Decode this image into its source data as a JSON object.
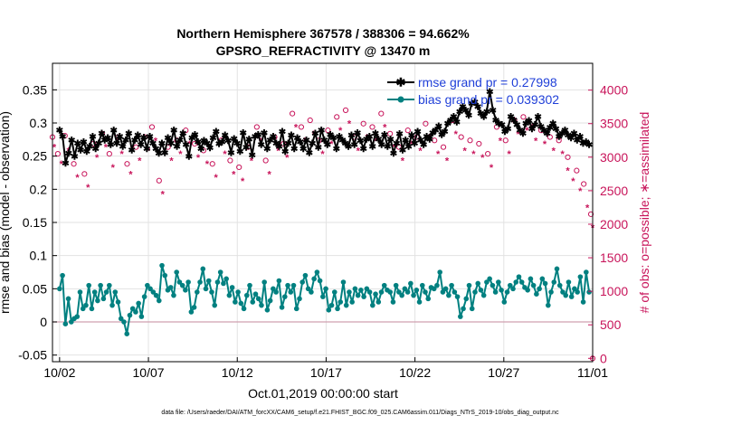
{
  "chart_data": {
    "type": "line",
    "title": "Northern Hemisphere 367578 / 388306 = 94.662%",
    "subtitle": "GPSRO_REFRACTIVITY @ 13470 m",
    "xlabel": "Oct.01,2019 00:00:00 start",
    "ylabel": "rmse and bias (model - observation)",
    "ylabel_right": "# of obs: o=possible; ∗=assimilated",
    "x_range": [
      0.6,
      31.0
    ],
    "ylim": [
      -0.06,
      0.39
    ],
    "ylim_right": [
      -50,
      4400
    ],
    "x_ticks": [
      1,
      6,
      11,
      16,
      21,
      26,
      31
    ],
    "x_tick_labels": [
      "10/02",
      "10/07",
      "10/12",
      "10/17",
      "10/22",
      "10/27",
      "11/01"
    ],
    "y_ticks": [
      -0.05,
      0,
      0.05,
      0.1,
      0.15,
      0.2,
      0.25,
      0.3,
      0.35
    ],
    "y_tick_labels": [
      "-0.05",
      "0",
      "0.05",
      "0.1",
      "0.15",
      "0.2",
      "0.25",
      "0.3",
      "0.35"
    ],
    "y_right_ticks": [
      0,
      500,
      1000,
      1500,
      2000,
      2500,
      3000,
      3500,
      4000
    ],
    "y_right_tick_labels": [
      "0",
      "500",
      "1000",
      "1500",
      "2000",
      "2500",
      "3000",
      "3500",
      "4000"
    ],
    "grid": true,
    "legend_position": "top-right",
    "series": [
      {
        "name": "rmse grand pr = 0.27998",
        "color": "#000000",
        "axis": "left",
        "marker": "star",
        "values": [
          0.29,
          0.28,
          0.24,
          0.255,
          0.275,
          0.25,
          0.27,
          0.26,
          0.272,
          0.258,
          0.265,
          0.28,
          0.262,
          0.27,
          0.285,
          0.275,
          0.278,
          0.268,
          0.29,
          0.27,
          0.28,
          0.265,
          0.275,
          0.285,
          0.26,
          0.275,
          0.282,
          0.268,
          0.279,
          0.262,
          0.28,
          0.27,
          0.262,
          0.255,
          0.27,
          0.256,
          0.278,
          0.27,
          0.29,
          0.265,
          0.275,
          0.285,
          0.268,
          0.25,
          0.278,
          0.283,
          0.272,
          0.262,
          0.274,
          0.27,
          0.263,
          0.278,
          0.288,
          0.269,
          0.272,
          0.282,
          0.274,
          0.256,
          0.277,
          0.27,
          0.258,
          0.286,
          0.264,
          0.276,
          0.252,
          0.28,
          0.283,
          0.268,
          0.286,
          0.262,
          0.275,
          0.28,
          0.27,
          0.265,
          0.288,
          0.258,
          0.27,
          0.282,
          0.262,
          0.278,
          0.272,
          0.262,
          0.275,
          0.256,
          0.27,
          0.285,
          0.264,
          0.29,
          0.275,
          0.268,
          0.283,
          0.278,
          0.262,
          0.28,
          0.275,
          0.27,
          0.265,
          0.282,
          0.268,
          0.286,
          0.274,
          0.262,
          0.276,
          0.28,
          0.265,
          0.285,
          0.276,
          0.268,
          0.283,
          0.265,
          0.276,
          0.255,
          0.27,
          0.284,
          0.26,
          0.275,
          0.265,
          0.282,
          0.27,
          0.288,
          0.275,
          0.268,
          0.28,
          0.276,
          0.286,
          0.29,
          0.296,
          0.283,
          0.288,
          0.3,
          0.305,
          0.31,
          0.302,
          0.318,
          0.325,
          0.32,
          0.312,
          0.33,
          0.332,
          0.325,
          0.315,
          0.31,
          0.318,
          0.348,
          0.32,
          0.305,
          0.3,
          0.298,
          0.288,
          0.292,
          0.31,
          0.305,
          0.298,
          0.29,
          0.285,
          0.3,
          0.304,
          0.292,
          0.298,
          0.31,
          0.295,
          0.29,
          0.285,
          0.294,
          0.3,
          0.292,
          0.28,
          0.285,
          0.29,
          0.282,
          0.278,
          0.285,
          0.275,
          0.28,
          0.27,
          0.272,
          0.268
        ]
      },
      {
        "name": "bias grand pr = 0.039302",
        "color": "#008080",
        "axis": "left",
        "marker": "circle",
        "values": [
          0.05,
          0.07,
          -0.003,
          0.035,
          0,
          0.005,
          0.008,
          0.045,
          0.02,
          0.025,
          0.055,
          0.02,
          0.045,
          0.032,
          0.055,
          0.035,
          0.045,
          0.055,
          0.025,
          0.045,
          0.03,
          0.005,
          0,
          -0.018,
          0.01,
          0.02,
          0.015,
          0.028,
          0.008,
          0.038,
          0.055,
          0.05,
          0.045,
          0.04,
          0.032,
          0.085,
          0.07,
          0.048,
          0.052,
          0.04,
          0.075,
          0.06,
          0.055,
          0.048,
          0.06,
          0.015,
          0.022,
          0.045,
          0.06,
          0.08,
          0.05,
          0.062,
          0.045,
          0.025,
          0.06,
          0.075,
          0.058,
          0.065,
          0.04,
          0.052,
          0.03,
          0.045,
          0.028,
          0.02,
          0.04,
          0.055,
          0.03,
          0.042,
          0.035,
          0.025,
          0.06,
          0.018,
          0.032,
          0.05,
          0.045,
          0.062,
          0.022,
          0.038,
          0.055,
          0.045,
          0.055,
          0.02,
          0.035,
          0.06,
          0.07,
          0.05,
          0.045,
          0.065,
          0.075,
          0.062,
          0.038,
          0.05,
          0.018,
          0.025,
          0.045,
          0.02,
          0.03,
          0.06,
          0.025,
          0.045,
          0.03,
          0.05,
          0.04,
          0.048,
          0.038,
          0.05,
          0.045,
          0.025,
          0.042,
          0.03,
          0.045,
          0.055,
          0.048,
          0.045,
          0.03,
          0.055,
          0.045,
          0.04,
          0.05,
          0.045,
          0.058,
          0.04,
          0.048,
          0.03,
          0.055,
          0.045,
          0.035,
          0.052,
          0.05,
          0.055,
          0.075,
          0.045,
          0.05,
          0.04,
          0.055,
          0.045,
          0.038,
          0.008,
          0.02,
          0.035,
          0.055,
          0.02,
          0.045,
          0.058,
          0.048,
          0.04,
          0.06,
          0.065,
          0.055,
          0.045,
          0.06,
          0.048,
          0.03,
          0.045,
          0.055,
          0.05,
          0.06,
          0.068,
          0.06,
          0.052,
          0.048,
          0.065,
          0.055,
          0.042,
          0.05,
          0.065,
          0.058,
          0.025,
          0.045,
          0.06,
          0.08,
          0.055,
          0.045,
          0.04,
          0.06,
          0.038,
          0.05,
          0.045,
          0.068,
          0.03,
          0.075,
          0.045
        ]
      },
      {
        "name": "# obs possible",
        "color": "#c8145a",
        "axis": "right",
        "marker": "o",
        "x": [
          0.6,
          0.9,
          1.3,
          1.8,
          2.4,
          2.9,
          3.4,
          3.8,
          4.3,
          4.8,
          5.3,
          5.8,
          6.2,
          6.6,
          7.1,
          7.6,
          8.1,
          8.6,
          9.1,
          9.6,
          10.1,
          10.6,
          11.1,
          11.6,
          12.1,
          12.6,
          13.1,
          13.6,
          14.1,
          14.6,
          15.1,
          15.6,
          16.1,
          16.6,
          17.1,
          17.6,
          18.1,
          18.6,
          19.1,
          19.6,
          20.1,
          20.6,
          21.1,
          21.6,
          22.1,
          22.6,
          23.1,
          23.6,
          24.1,
          24.6,
          25.1,
          25.6,
          26.1,
          26.6,
          27.1,
          27.6,
          28.1,
          28.6,
          29.1,
          29.6,
          30.1,
          30.5,
          30.9
        ],
        "values": [
          3300,
          3050,
          3320,
          2900,
          2750,
          3200,
          3350,
          3050,
          3300,
          2900,
          3150,
          3300,
          3450,
          2650,
          3150,
          3250,
          3400,
          3200,
          3100,
          2900,
          3250,
          2950,
          2850,
          3150,
          3450,
          2950,
          3300,
          3200,
          3650,
          3450,
          3550,
          3250,
          3400,
          3600,
          3700,
          3300,
          3500,
          3450,
          3650,
          3350,
          3150,
          3400,
          3300,
          3500,
          3250,
          3150,
          3550,
          3300,
          3250,
          3200,
          3050,
          3450,
          3250,
          3550,
          3600,
          3450,
          3400,
          3300,
          3250,
          3000,
          2800,
          2600,
          2150
        ]
      },
      {
        "name": "# obs assimilated",
        "color": "#c8145a",
        "axis": "right",
        "marker": "star",
        "x": [
          0.7,
          1.1,
          1.5,
          2.0,
          2.6,
          3.1,
          3.6,
          4.0,
          4.5,
          5.0,
          5.5,
          6.0,
          6.4,
          6.8,
          7.3,
          7.8,
          8.3,
          8.8,
          9.3,
          9.8,
          10.3,
          10.8,
          11.3,
          11.8,
          12.3,
          12.8,
          13.3,
          13.8,
          14.3,
          14.8,
          15.3,
          15.8,
          16.3,
          16.8,
          17.3,
          17.8,
          18.3,
          18.8,
          19.3,
          19.8,
          20.3,
          20.8,
          21.3,
          21.8,
          22.3,
          22.8,
          23.3,
          23.8,
          24.3,
          24.8,
          25.3,
          25.8,
          26.3,
          26.8,
          27.3,
          27.8,
          28.3,
          28.8,
          29.3,
          29.6,
          29.9,
          30.3,
          30.7,
          31.0
        ],
        "values": [
          3150,
          2900,
          3100,
          2700,
          2550,
          3000,
          3150,
          2850,
          3050,
          2750,
          2950,
          3100,
          3250,
          2450,
          2950,
          3050,
          3200,
          3000,
          2900,
          2700,
          3050,
          2750,
          2650,
          2950,
          3250,
          2750,
          3100,
          3000,
          3450,
          3250,
          3350,
          3050,
          3200,
          3400,
          3500,
          3100,
          3300,
          3250,
          3450,
          3150,
          2950,
          3200,
          3100,
          3300,
          3050,
          2950,
          3350,
          3100,
          3050,
          3000,
          2850,
          3250,
          3050,
          3350,
          3400,
          3250,
          3200,
          3100,
          3050,
          2800,
          2650,
          2500,
          2250,
          1950
        ]
      }
    ],
    "annotation_last_point_right": 0,
    "footer": "data file: /Users/raeder/DAI/ATM_forcXX/CAM6_setup/f.e21.FHIST_BGC.f09_025.CAM6assim.011/Diags_NTrS_2019-10/obs_diag_output.nc"
  },
  "colors": {
    "rmse": "#000000",
    "bias": "#008080",
    "obs": "#c8145a",
    "legend_text": "#1f3fd8",
    "zero_line": "#d0a0b0"
  }
}
